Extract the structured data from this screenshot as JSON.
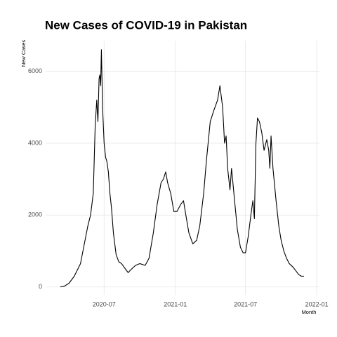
{
  "chart_data": {
    "type": "line",
    "title": "New Cases of COVID-19 in Pakistan",
    "x_label": "Month",
    "y_label": "New Cases",
    "grid": true,
    "xlim": [
      "2020-02-01",
      "2022-01-08"
    ],
    "ylim": [
      -220,
      6850
    ],
    "xticks": [
      {
        "value": "2020-07-01",
        "label": "2020-07"
      },
      {
        "value": "2021-01-01",
        "label": "2021-01"
      },
      {
        "value": "2021-07-01",
        "label": "2021-07"
      },
      {
        "value": "2022-01-01",
        "label": "2022-01"
      }
    ],
    "yticks": [
      0,
      2000,
      4000,
      6000
    ],
    "x": [
      "2020-03-10",
      "2020-03-20",
      "2020-04-01",
      "2020-04-15",
      "2020-05-01",
      "2020-05-20",
      "2020-05-27",
      "2020-06-03",
      "2020-06-08",
      "2020-06-12",
      "2020-06-15",
      "2020-06-18",
      "2020-06-20",
      "2020-06-22",
      "2020-06-24",
      "2020-06-27",
      "2020-07-01",
      "2020-07-05",
      "2020-07-08",
      "2020-07-12",
      "2020-07-16",
      "2020-07-20",
      "2020-07-25",
      "2020-08-01",
      "2020-08-08",
      "2020-08-15",
      "2020-08-25",
      "2020-09-01",
      "2020-09-10",
      "2020-09-20",
      "2020-10-01",
      "2020-10-15",
      "2020-10-25",
      "2020-11-05",
      "2020-11-15",
      "2020-11-25",
      "2020-12-01",
      "2020-12-07",
      "2020-12-12",
      "2020-12-20",
      "2020-12-28",
      "2021-01-05",
      "2021-01-15",
      "2021-01-22",
      "2021-01-28",
      "2021-02-05",
      "2021-02-15",
      "2021-02-25",
      "2021-03-05",
      "2021-03-15",
      "2021-03-22",
      "2021-04-01",
      "2021-04-10",
      "2021-04-20",
      "2021-04-26",
      "2021-05-03",
      "2021-05-08",
      "2021-05-12",
      "2021-05-16",
      "2021-05-22",
      "2021-05-26",
      "2021-06-02",
      "2021-06-10",
      "2021-06-18",
      "2021-06-25",
      "2021-07-01",
      "2021-07-08",
      "2021-07-15",
      "2021-07-20",
      "2021-07-24",
      "2021-07-28",
      "2021-08-01",
      "2021-08-06",
      "2021-08-12",
      "2021-08-18",
      "2021-08-25",
      "2021-08-30",
      "2021-09-02",
      "2021-09-05",
      "2021-09-10",
      "2021-09-18",
      "2021-09-25",
      "2021-10-01",
      "2021-10-08",
      "2021-10-15",
      "2021-10-22",
      "2021-11-01",
      "2021-11-08",
      "2021-11-15",
      "2021-11-22",
      "2021-11-29"
    ],
    "series": [
      {
        "name": "New Cases",
        "color": "#000000",
        "values": [
          0,
          20,
          100,
          300,
          650,
          1700,
          2000,
          2600,
          4500,
          5200,
          4600,
          5800,
          5900,
          5600,
          6600,
          5000,
          4000,
          3600,
          3500,
          3200,
          2600,
          2200,
          1500,
          900,
          700,
          650,
          500,
          400,
          500,
          600,
          650,
          600,
          800,
          1500,
          2300,
          2900,
          3000,
          3200,
          2900,
          2600,
          2100,
          2100,
          2300,
          2400,
          2000,
          1500,
          1200,
          1300,
          1700,
          2600,
          3500,
          4600,
          4900,
          5200,
          5600,
          5000,
          4000,
          4200,
          3300,
          2700,
          3300,
          2500,
          1600,
          1100,
          950,
          950,
          1400,
          2000,
          2400,
          1900,
          4000,
          4700,
          4600,
          4300,
          3800,
          4100,
          3800,
          3300,
          4200,
          3300,
          2400,
          1700,
          1300,
          1000,
          800,
          650,
          550,
          450,
          350,
          300,
          300
        ]
      }
    ]
  }
}
